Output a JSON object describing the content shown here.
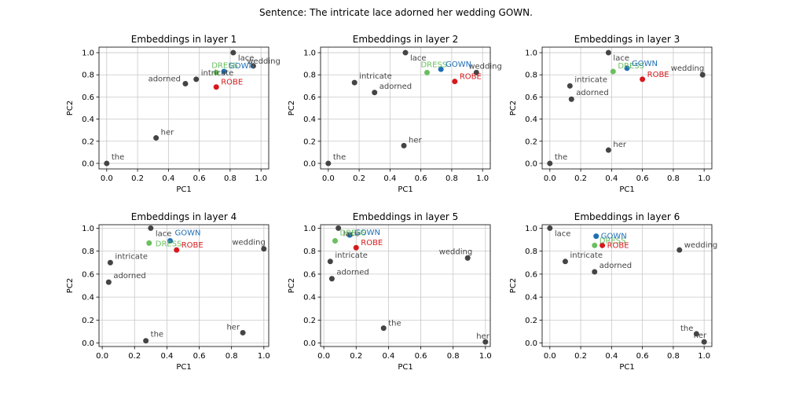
{
  "figure": {
    "title": "Sentence: The intricate lace adorned her wedding GOWN."
  },
  "colors": {
    "word": "#444444",
    "DRESS": "#6abf5e",
    "GOWN": "#1f6fb5",
    "ROBE": "#d7191c",
    "grid": "#c8c8c8"
  },
  "chart_data": [
    {
      "type": "scatter",
      "title": "Embeddings in layer 1",
      "xlabel": "PC1",
      "ylabel": "PC2",
      "xlim": [
        -0.05,
        1.05
      ],
      "ylim": [
        -0.05,
        1.05
      ],
      "grid": true,
      "xticks": [
        "0.0",
        "0.2",
        "0.4",
        "0.6",
        "0.8",
        "1.0"
      ],
      "yticks": [
        "0.0",
        "0.2",
        "0.4",
        "0.6",
        "0.8",
        "1.0"
      ],
      "points": [
        {
          "label": "the",
          "x": 0.0,
          "y": 0.0
        },
        {
          "label": "intricate",
          "x": 0.58,
          "y": 0.76
        },
        {
          "label": "lace",
          "x": 0.82,
          "y": 1.0
        },
        {
          "label": "adorned",
          "x": 0.51,
          "y": 0.72
        },
        {
          "label": "her",
          "x": 0.32,
          "y": 0.23
        },
        {
          "label": "wedding",
          "x": 0.95,
          "y": 0.88
        },
        {
          "label": "DRESS",
          "x": 0.71,
          "y": 0.82
        },
        {
          "label": "GOWN",
          "x": 0.76,
          "y": 0.83
        },
        {
          "label": "ROBE",
          "x": 0.71,
          "y": 0.69
        }
      ]
    },
    {
      "type": "scatter",
      "title": "Embeddings in layer 2",
      "xlabel": "PC1",
      "ylabel": "PC2",
      "xlim": [
        -0.05,
        1.05
      ],
      "ylim": [
        -0.05,
        1.05
      ],
      "grid": true,
      "xticks": [
        "0.0",
        "0.2",
        "0.4",
        "0.6",
        "0.8",
        "1.0"
      ],
      "yticks": [
        "0.0",
        "0.2",
        "0.4",
        "0.6",
        "0.8",
        "1.0"
      ],
      "points": [
        {
          "label": "the",
          "x": 0.0,
          "y": 0.0
        },
        {
          "label": "intricate",
          "x": 0.17,
          "y": 0.73
        },
        {
          "label": "lace",
          "x": 0.5,
          "y": 1.0
        },
        {
          "label": "adorned",
          "x": 0.3,
          "y": 0.64
        },
        {
          "label": "her",
          "x": 0.49,
          "y": 0.16
        },
        {
          "label": "wedding",
          "x": 0.96,
          "y": 0.82
        },
        {
          "label": "DRESS",
          "x": 0.64,
          "y": 0.82
        },
        {
          "label": "GOWN",
          "x": 0.73,
          "y": 0.85
        },
        {
          "label": "ROBE",
          "x": 0.82,
          "y": 0.74
        }
      ]
    },
    {
      "type": "scatter",
      "title": "Embeddings in layer 3",
      "xlabel": "PC1",
      "ylabel": "PC2",
      "xlim": [
        -0.05,
        1.05
      ],
      "ylim": [
        -0.05,
        1.05
      ],
      "grid": true,
      "xticks": [
        "0.0",
        "0.2",
        "0.4",
        "0.6",
        "0.8",
        "1.0"
      ],
      "yticks": [
        "0.0",
        "0.2",
        "0.4",
        "0.6",
        "0.8",
        "1.0"
      ],
      "points": [
        {
          "label": "the",
          "x": 0.0,
          "y": 0.0
        },
        {
          "label": "intricate",
          "x": 0.13,
          "y": 0.7
        },
        {
          "label": "lace",
          "x": 0.38,
          "y": 1.0
        },
        {
          "label": "adorned",
          "x": 0.14,
          "y": 0.58
        },
        {
          "label": "her",
          "x": 0.38,
          "y": 0.12
        },
        {
          "label": "wedding",
          "x": 0.99,
          "y": 0.8
        },
        {
          "label": "DRESS",
          "x": 0.41,
          "y": 0.83
        },
        {
          "label": "GOWN",
          "x": 0.5,
          "y": 0.86
        },
        {
          "label": "ROBE",
          "x": 0.6,
          "y": 0.76
        }
      ]
    },
    {
      "type": "scatter",
      "title": "Embeddings in layer 4",
      "xlabel": "PC1",
      "ylabel": "PC2",
      "xlim": [
        -0.02,
        1.03
      ],
      "ylim": [
        -0.03,
        1.03
      ],
      "grid": true,
      "xticks": [
        "0.0",
        "0.2",
        "0.4",
        "0.6",
        "0.8",
        "1.0"
      ],
      "yticks": [
        "0.0",
        "0.2",
        "0.4",
        "0.6",
        "0.8",
        "1.0"
      ],
      "points": [
        {
          "label": "the",
          "x": 0.27,
          "y": 0.02
        },
        {
          "label": "intricate",
          "x": 0.05,
          "y": 0.7
        },
        {
          "label": "lace",
          "x": 0.3,
          "y": 1.0
        },
        {
          "label": "adorned",
          "x": 0.04,
          "y": 0.53
        },
        {
          "label": "her",
          "x": 0.87,
          "y": 0.09
        },
        {
          "label": "wedding",
          "x": 1.0,
          "y": 0.82
        },
        {
          "label": "DRESS",
          "x": 0.29,
          "y": 0.87
        },
        {
          "label": "GOWN",
          "x": 0.42,
          "y": 0.89
        },
        {
          "label": "ROBE",
          "x": 0.46,
          "y": 0.81
        }
      ]
    },
    {
      "type": "scatter",
      "title": "Embeddings in layer 5",
      "xlabel": "PC1",
      "ylabel": "PC2",
      "xlim": [
        -0.02,
        1.03
      ],
      "ylim": [
        -0.03,
        1.03
      ],
      "grid": true,
      "xticks": [
        "0.0",
        "0.2",
        "0.4",
        "0.6",
        "0.8",
        "1.0"
      ],
      "yticks": [
        "0.0",
        "0.2",
        "0.4",
        "0.6",
        "0.8",
        "1.0"
      ],
      "points": [
        {
          "label": "the",
          "x": 0.37,
          "y": 0.13
        },
        {
          "label": "intricate",
          "x": 0.04,
          "y": 0.71
        },
        {
          "label": "lace",
          "x": 0.09,
          "y": 1.0
        },
        {
          "label": "adorned",
          "x": 0.05,
          "y": 0.56
        },
        {
          "label": "her",
          "x": 1.0,
          "y": 0.01
        },
        {
          "label": "wedding",
          "x": 0.89,
          "y": 0.74
        },
        {
          "label": "DRESS",
          "x": 0.07,
          "y": 0.89
        },
        {
          "label": "GOWN",
          "x": 0.16,
          "y": 0.94
        },
        {
          "label": "ROBE",
          "x": 0.2,
          "y": 0.83
        }
      ]
    },
    {
      "type": "scatter",
      "title": "Embeddings in layer 6",
      "xlabel": "PC1",
      "ylabel": "PC2",
      "xlim": [
        -0.05,
        1.05
      ],
      "ylim": [
        -0.03,
        1.03
      ],
      "grid": true,
      "xticks": [
        "0.0",
        "0.2",
        "0.4",
        "0.6",
        "0.8",
        "1.0"
      ],
      "yticks": [
        "0.0",
        "0.2",
        "0.4",
        "0.6",
        "0.8",
        "1.0"
      ],
      "points": [
        {
          "label": "the",
          "x": 0.95,
          "y": 0.08
        },
        {
          "label": "intricate",
          "x": 0.1,
          "y": 0.71
        },
        {
          "label": "lace",
          "x": 0.0,
          "y": 1.0
        },
        {
          "label": "adorned",
          "x": 0.29,
          "y": 0.62
        },
        {
          "label": "her",
          "x": 1.0,
          "y": 0.01
        },
        {
          "label": "wedding",
          "x": 0.84,
          "y": 0.81
        },
        {
          "label": "DRESS",
          "x": 0.29,
          "y": 0.85
        },
        {
          "label": "GOWN",
          "x": 0.3,
          "y": 0.93
        },
        {
          "label": "ROBE",
          "x": 0.34,
          "y": 0.85
        }
      ]
    }
  ]
}
